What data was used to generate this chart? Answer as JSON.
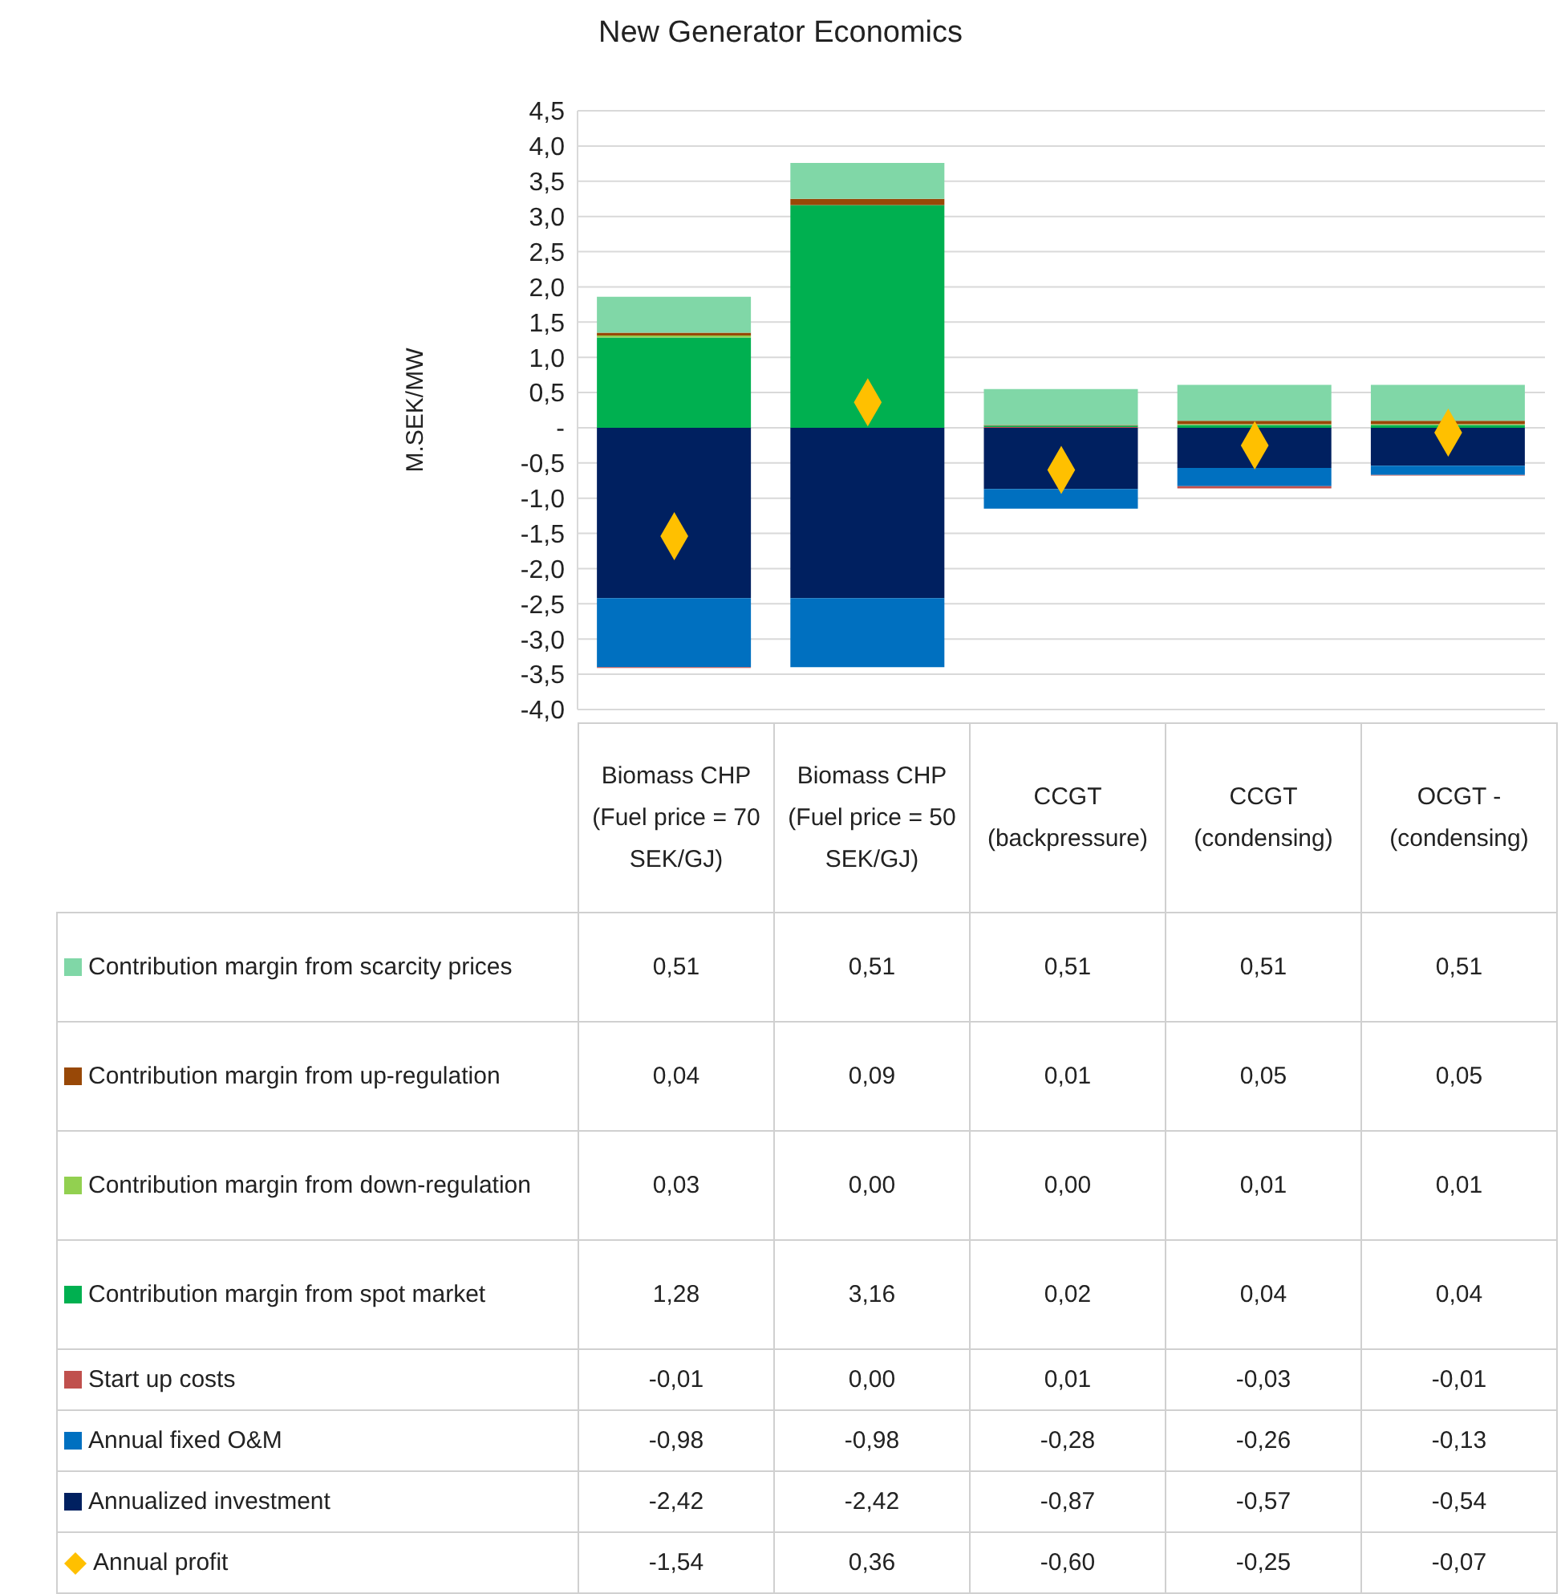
{
  "chart_data": {
    "type": "bar",
    "title": "New Generator Economics",
    "ylabel": "M.SEK/MW",
    "categories": [
      "Biomass CHP (Fuel price = 70 SEK/GJ)",
      "Biomass CHP (Fuel price = 50 SEK/GJ)",
      "CCGT (backpressure)",
      "CCGT (condensing)",
      "OCGT - (condensing)"
    ],
    "stacked": true,
    "grid": "y",
    "legend": "bottom",
    "ylim": [
      -4,
      4.5
    ],
    "yticks": [
      {
        "value": -4,
        "label": "-4,0"
      },
      {
        "value": -3.5,
        "label": "-3,5"
      },
      {
        "value": -3,
        "label": "-3,0"
      },
      {
        "value": -2.5,
        "label": "-2,5"
      },
      {
        "value": -2,
        "label": "-2,0"
      },
      {
        "value": -1.5,
        "label": "-1,5"
      },
      {
        "value": -1,
        "label": "-1,0"
      },
      {
        "value": -0.5,
        "label": "-0,5"
      },
      {
        "value": 0,
        "label": "-"
      },
      {
        "value": 0.5,
        "label": "0,5"
      },
      {
        "value": 1,
        "label": "1,0"
      },
      {
        "value": 1.5,
        "label": "1,5"
      },
      {
        "value": 2,
        "label": "2,0"
      },
      {
        "value": 2.5,
        "label": "2,5"
      },
      {
        "value": 3,
        "label": "3,0"
      },
      {
        "value": 3.5,
        "label": "3,5"
      },
      {
        "value": 4,
        "label": "4,0"
      },
      {
        "value": 4.5,
        "label": "4,5"
      }
    ],
    "series": [
      {
        "name": "Annualized investment",
        "color": "#002060",
        "values": [
          -2.42,
          -2.42,
          -0.87,
          -0.57,
          -0.54
        ],
        "value_labels": [
          "-2,42",
          "-2,42",
          "-0,87",
          "-0,57",
          "-0,54"
        ]
      },
      {
        "name": "Annual fixed O&M",
        "color": "#0070c0",
        "values": [
          -0.98,
          -0.98,
          -0.28,
          -0.26,
          -0.13
        ],
        "value_labels": [
          "-0,98",
          "-0,98",
          "-0,28",
          "-0,26",
          "-0,13"
        ]
      },
      {
        "name": "Start up costs",
        "color": "#c0504d",
        "values": [
          -0.01,
          0,
          0.01,
          -0.03,
          -0.01
        ],
        "value_labels": [
          "-0,01",
          "0,00",
          "0,01",
          "-0,03",
          "-0,01"
        ]
      },
      {
        "name": "Contribution margin from spot market",
        "color": "#00b050",
        "values": [
          1.28,
          3.16,
          0.02,
          0.04,
          0.04
        ],
        "value_labels": [
          "1,28",
          "3,16",
          "0,02",
          "0,04",
          "0,04"
        ]
      },
      {
        "name": "Contribution margin from down-regulation",
        "color": "#92d050",
        "values": [
          0.03,
          0,
          0,
          0.01,
          0.01
        ],
        "value_labels": [
          "0,03",
          "0,00",
          "0,00",
          "0,01",
          "0,01"
        ]
      },
      {
        "name": "Contribution margin from up-regulation",
        "color": "#984807",
        "values": [
          0.04,
          0.09,
          0.01,
          0.05,
          0.05
        ],
        "value_labels": [
          "0,04",
          "0,09",
          "0,01",
          "0,05",
          "0,05"
        ]
      },
      {
        "name": "Contribution margin from scarcity prices",
        "color": "#80d7a7",
        "values": [
          0.51,
          0.51,
          0.51,
          0.51,
          0.51
        ],
        "value_labels": [
          "0,51",
          "0,51",
          "0,51",
          "0,51",
          "0,51"
        ]
      },
      {
        "name": "Annual profit",
        "type": "scatter",
        "marker": "diamond",
        "color": "#ffc000",
        "values": [
          -1.54,
          0.36,
          -0.6,
          -0.25,
          -0.07
        ],
        "value_labels": [
          "-1,54",
          "0,36",
          "-0,60",
          "-0,25",
          "-0,07"
        ]
      }
    ]
  }
}
